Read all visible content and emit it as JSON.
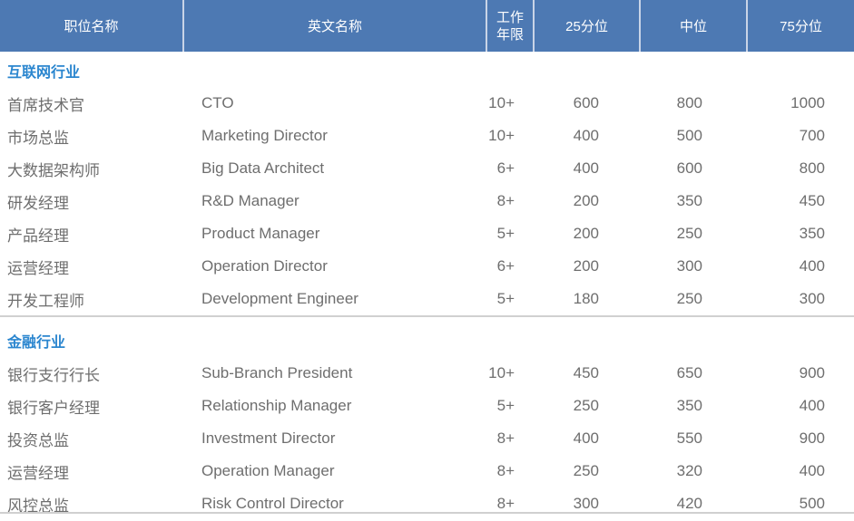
{
  "table": {
    "columns": [
      {
        "key": "title_cn",
        "label": "职位名称"
      },
      {
        "key": "title_en",
        "label": "英文名称"
      },
      {
        "key": "years",
        "label": "工作年限",
        "label_lines": [
          "工作",
          "年限"
        ]
      },
      {
        "key": "p25",
        "label": "25分位"
      },
      {
        "key": "median",
        "label": "中位"
      },
      {
        "key": "p75",
        "label": "75分位"
      }
    ],
    "sections": [
      {
        "name": "互联网行业",
        "rows": [
          [
            "首席技术官",
            "CTO",
            "10+",
            "600",
            "800",
            "1000"
          ],
          [
            "市场总监",
            "Marketing Director",
            "10+",
            "400",
            "500",
            "700"
          ],
          [
            "大数据架构师",
            "Big Data Architect",
            "6+",
            "400",
            "600",
            "800"
          ],
          [
            "研发经理",
            "R&D Manager",
            "8+",
            "200",
            "350",
            "450"
          ],
          [
            "产品经理",
            "Product Manager",
            "5+",
            "200",
            "250",
            "350"
          ],
          [
            "运营经理",
            "Operation Director",
            "6+",
            "200",
            "300",
            "400"
          ],
          [
            "开发工程师",
            "Development Engineer",
            "5+",
            "180",
            "250",
            "300"
          ]
        ]
      },
      {
        "name": "金融行业",
        "rows": [
          [
            "银行支行行长",
            "Sub-Branch President",
            "10+",
            "450",
            "650",
            "900"
          ],
          [
            "银行客户经理",
            "Relationship Manager",
            "5+",
            "250",
            "350",
            "400"
          ],
          [
            "投资总监",
            "Investment Director",
            "8+",
            "400",
            "550",
            "900"
          ],
          [
            "运营经理",
            "Operation Manager",
            "8+",
            "250",
            "320",
            "400"
          ],
          [
            "风控总监",
            "Risk Control Director",
            "8+",
            "300",
            "420",
            "500"
          ]
        ]
      }
    ]
  },
  "colors": {
    "header_bg": "#4d79b3",
    "header_text": "#ffffff",
    "header_divider": "#c9d4e7",
    "section_title_text": "#2b86cf",
    "body_text": "#6e6e6e",
    "divider_line": "#d0d0d0"
  }
}
